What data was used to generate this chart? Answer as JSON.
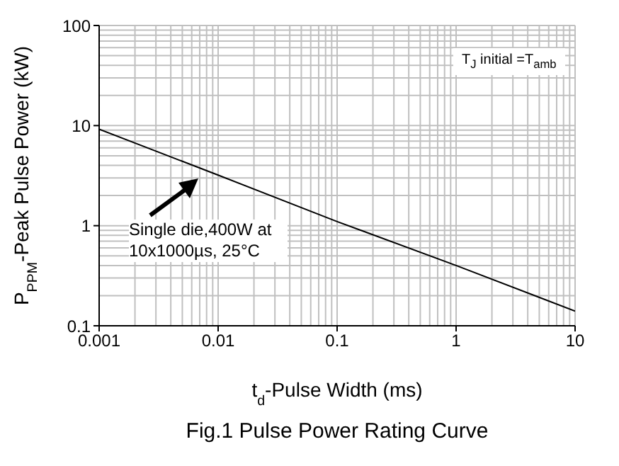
{
  "chart_data": {
    "type": "line",
    "title": "Fig.1 Pulse Power Rating Curve",
    "xlabel": "t$_{d}$-Pulse Width (ms)",
    "ylabel": "P$_{PPM}$-Peak Pulse Power (kW)",
    "x": [
      0.001,
      0.01,
      0.1,
      1,
      10
    ],
    "series": [
      {
        "color": "#000000",
        "values": [
          9.2,
          3.2,
          1.1,
          0.4,
          0.14
        ]
      }
    ],
    "log": "xy",
    "xlim": [
      0.001,
      10
    ],
    "ylim": [
      0.1,
      100
    ],
    "xticks": [
      0.001,
      0.01,
      0.1,
      1,
      10
    ],
    "yticks": [
      0.1,
      1,
      10,
      100
    ],
    "grid": true,
    "marker": "none",
    "annotations": [
      "Single die,400W at 10x1000µs, 25°C",
      "T$_{J}$ initial =T$_{amb}$"
    ]
  }
}
